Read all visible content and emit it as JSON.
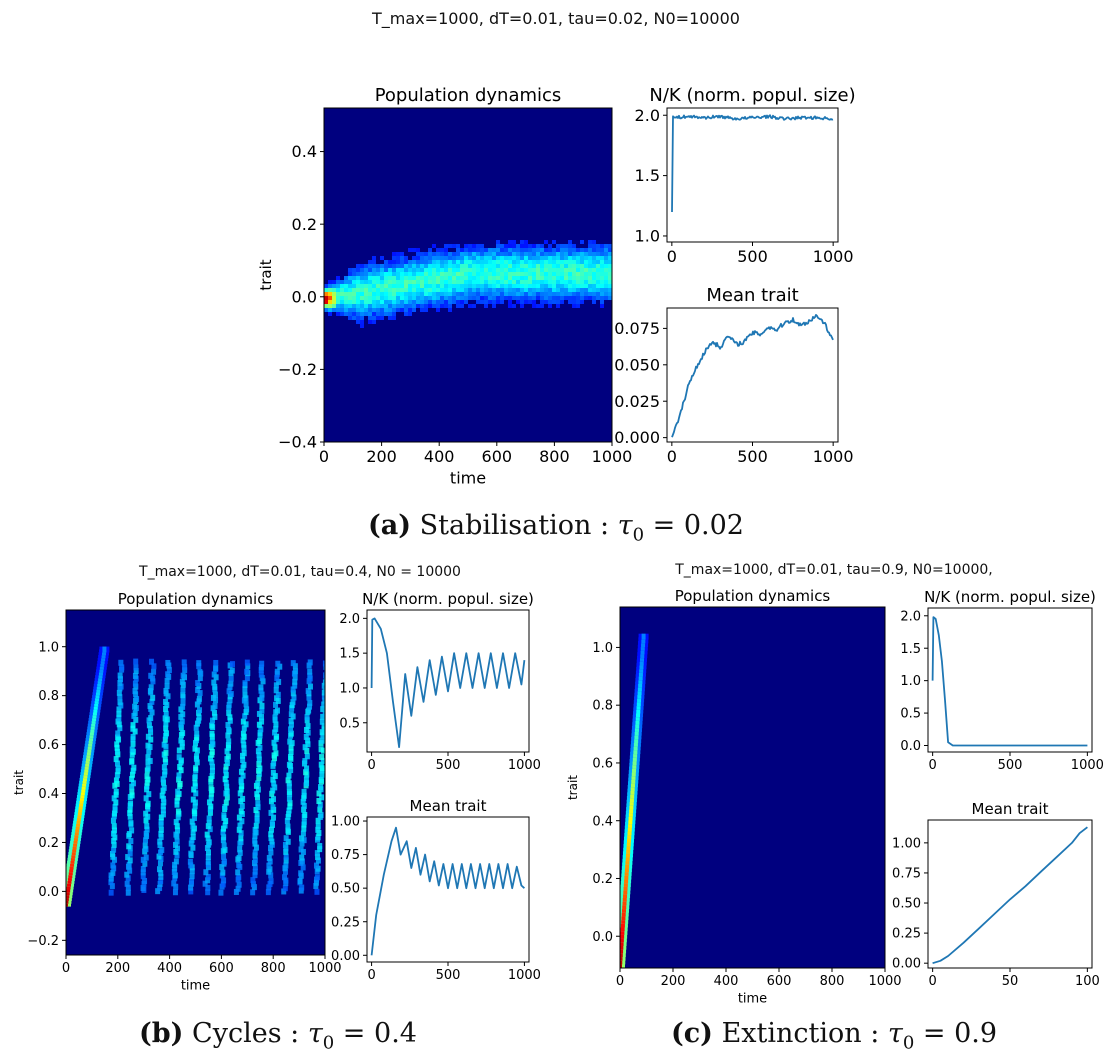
{
  "panels": [
    {
      "id": "a",
      "suptitle": "T_max=1000, dT=0.01, tau=0.02, N0=10000",
      "caption": {
        "letter": "(a)",
        "text": "Stabilisation",
        "tau_value": "0.02"
      }
    },
    {
      "id": "b",
      "suptitle": "T_max=1000, dT=0.01, tau=0.4, N0 = 10000",
      "caption": {
        "letter": "(b)",
        "text": "Cycles",
        "tau_value": "0.4"
      }
    },
    {
      "id": "c",
      "suptitle": "T_max=1000, dT=0.01, tau=0.9, N0=10000,",
      "caption": {
        "letter": "(c)",
        "text": "Extinction",
        "tau_value": "0.9"
      }
    }
  ],
  "chart_data": [
    {
      "panel": "a",
      "type": "heatmap",
      "title": "Population dynamics",
      "xlabel": "time",
      "ylabel": "trait",
      "xlim": [
        0,
        1000
      ],
      "ylim": [
        -0.4,
        0.52
      ],
      "xticks": [
        0,
        200,
        400,
        600,
        800,
        1000
      ],
      "yticks": [
        -0.4,
        -0.2,
        0.0,
        0.2,
        0.4
      ],
      "ytick_labels": [
        "−0.4",
        "−0.2",
        "0.0",
        "0.2",
        "0.4"
      ],
      "colormap": "jet",
      "density_band": {
        "center_start": 0.0,
        "center_end": 0.07,
        "halfwidth": 0.1
      }
    },
    {
      "panel": "a",
      "type": "line",
      "title": "N/K (norm. popul. size)",
      "xlim": [
        -30,
        1030
      ],
      "ylim": [
        0.95,
        2.06
      ],
      "xticks": [
        0,
        500,
        1000
      ],
      "yticks": [
        1.0,
        1.5,
        2.0
      ],
      "ytick_labels": [
        "1.0",
        "1.5",
        "2.0"
      ],
      "series": [
        {
          "x": [
            0,
            5,
            10,
            100,
            200,
            300,
            400,
            500,
            600,
            700,
            800,
            900,
            1000
          ],
          "y": [
            1.0,
            2.0,
            1.98,
            1.99,
            1.98,
            1.99,
            1.97,
            1.98,
            1.99,
            1.97,
            1.98,
            1.98,
            1.97
          ]
        }
      ],
      "noise": 0.012
    },
    {
      "panel": "a",
      "type": "line",
      "title": "Mean trait",
      "xlim": [
        -30,
        1030
      ],
      "ylim": [
        -0.003,
        0.089
      ],
      "xticks": [
        0,
        500,
        1000
      ],
      "yticks": [
        0.0,
        0.025,
        0.05,
        0.075
      ],
      "ytick_labels": [
        "0.000",
        "0.025",
        "0.050",
        "0.075"
      ],
      "series": [
        {
          "x": [
            0,
            50,
            100,
            150,
            200,
            250,
            300,
            350,
            400,
            450,
            500,
            550,
            600,
            650,
            700,
            750,
            800,
            850,
            900,
            950,
            1000
          ],
          "y": [
            0.0,
            0.015,
            0.035,
            0.048,
            0.058,
            0.066,
            0.062,
            0.07,
            0.064,
            0.066,
            0.072,
            0.071,
            0.076,
            0.074,
            0.079,
            0.081,
            0.077,
            0.08,
            0.084,
            0.078,
            0.066
          ]
        }
      ],
      "noise": 0.0015
    },
    {
      "panel": "b",
      "type": "heatmap",
      "title": "Population dynamics",
      "xlabel": "time",
      "ylabel": "trait",
      "xlim": [
        0,
        1000
      ],
      "ylim": [
        -0.26,
        1.15
      ],
      "xticks": [
        0,
        200,
        400,
        600,
        800,
        1000
      ],
      "yticks": [
        -0.2,
        0.0,
        0.2,
        0.4,
        0.6,
        0.8,
        1.0
      ],
      "ytick_labels": [
        "−0.2",
        "0.0",
        "0.2",
        "0.4",
        "0.6",
        "0.8",
        "1.0"
      ],
      "colormap": "jet",
      "initial_streak": {
        "t": [
          0,
          150
        ],
        "trait": [
          -0.05,
          1.0
        ]
      },
      "stripes": {
        "t_start": 200,
        "t_end": 990,
        "count": 14,
        "trait_range": [
          0.0,
          0.95
        ]
      }
    },
    {
      "panel": "b",
      "type": "line",
      "title": "N/K (norm. popul. size)",
      "xlim": [
        -30,
        1030
      ],
      "ylim": [
        0.08,
        2.12
      ],
      "xticks": [
        0,
        500,
        1000
      ],
      "yticks": [
        0.5,
        1.0,
        1.5,
        2.0
      ],
      "ytick_labels": [
        "0.5",
        "1.0",
        "1.5",
        "2.0"
      ],
      "series": [
        {
          "x": [
            0,
            5,
            20,
            60,
            100,
            140,
            180,
            220,
            260,
            300,
            340,
            380,
            420,
            460,
            500,
            540,
            580,
            620,
            660,
            700,
            740,
            780,
            820,
            860,
            900,
            940,
            980,
            1000
          ],
          "y": [
            1.0,
            1.98,
            2.0,
            1.85,
            1.5,
            0.8,
            0.15,
            1.2,
            0.6,
            1.3,
            0.8,
            1.4,
            0.9,
            1.45,
            0.95,
            1.5,
            1.0,
            1.5,
            1.0,
            1.5,
            1.0,
            1.5,
            1.0,
            1.5,
            1.0,
            1.5,
            1.05,
            1.4
          ]
        }
      ]
    },
    {
      "panel": "b",
      "type": "line",
      "title": "Mean trait",
      "xlim": [
        -30,
        1030
      ],
      "ylim": [
        -0.05,
        1.03
      ],
      "xticks": [
        0,
        500,
        1000
      ],
      "yticks": [
        0.0,
        0.25,
        0.5,
        0.75,
        1.0
      ],
      "ytick_labels": [
        "0.00",
        "0.25",
        "0.50",
        "0.75",
        "1.00"
      ],
      "series": [
        {
          "x": [
            0,
            30,
            80,
            130,
            160,
            190,
            230,
            260,
            290,
            320,
            350,
            380,
            410,
            440,
            470,
            500,
            530,
            560,
            590,
            620,
            650,
            680,
            710,
            740,
            770,
            800,
            830,
            860,
            890,
            920,
            950,
            980,
            1000
          ],
          "y": [
            0.0,
            0.3,
            0.6,
            0.85,
            0.95,
            0.75,
            0.85,
            0.65,
            0.8,
            0.6,
            0.75,
            0.55,
            0.7,
            0.52,
            0.68,
            0.5,
            0.68,
            0.5,
            0.68,
            0.5,
            0.68,
            0.5,
            0.68,
            0.5,
            0.68,
            0.5,
            0.68,
            0.5,
            0.68,
            0.5,
            0.66,
            0.52,
            0.5
          ]
        }
      ]
    },
    {
      "panel": "c",
      "type": "heatmap",
      "title": "Population dynamics",
      "xlabel": "time",
      "ylabel": "trait",
      "xlim": [
        0,
        1000
      ],
      "ylim": [
        -0.11,
        1.14
      ],
      "xticks": [
        0,
        200,
        400,
        600,
        800,
        1000
      ],
      "yticks": [
        0.0,
        0.2,
        0.4,
        0.6,
        0.8,
        1.0
      ],
      "ytick_labels": [
        "0.0",
        "0.2",
        "0.4",
        "0.6",
        "0.8",
        "1.0"
      ],
      "colormap": "jet",
      "initial_streak": {
        "t": [
          0,
          90
        ],
        "trait": [
          -0.1,
          1.05
        ]
      }
    },
    {
      "panel": "c",
      "type": "line",
      "title": "N/K (norm. popul. size)",
      "xlim": [
        -30,
        1030
      ],
      "ylim": [
        -0.1,
        2.12
      ],
      "xticks": [
        0,
        500,
        1000
      ],
      "yticks": [
        0.0,
        0.5,
        1.0,
        1.5,
        2.0
      ],
      "ytick_labels": [
        "0.0",
        "0.5",
        "1.0",
        "1.5",
        "2.0"
      ],
      "series": [
        {
          "x": [
            0,
            5,
            20,
            40,
            60,
            80,
            100,
            130,
            200,
            400,
            600,
            800,
            1000
          ],
          "y": [
            1.0,
            1.98,
            1.95,
            1.7,
            1.3,
            0.7,
            0.05,
            0.0,
            0.0,
            0.0,
            0.0,
            0.0,
            0.0
          ]
        }
      ]
    },
    {
      "panel": "c",
      "type": "line",
      "title": "Mean trait",
      "xlim": [
        -3,
        103
      ],
      "ylim": [
        -0.04,
        1.19
      ],
      "xticks": [
        0,
        50,
        100
      ],
      "yticks": [
        0.0,
        0.25,
        0.5,
        0.75,
        1.0
      ],
      "ytick_labels": [
        "0.00",
        "0.25",
        "0.50",
        "0.75",
        "1.00"
      ],
      "series": [
        {
          "x": [
            0,
            5,
            10,
            20,
            30,
            40,
            50,
            60,
            70,
            80,
            90,
            95,
            100
          ],
          "y": [
            0.0,
            0.02,
            0.06,
            0.17,
            0.29,
            0.41,
            0.53,
            0.64,
            0.76,
            0.88,
            1.0,
            1.08,
            1.13
          ]
        }
      ]
    }
  ]
}
